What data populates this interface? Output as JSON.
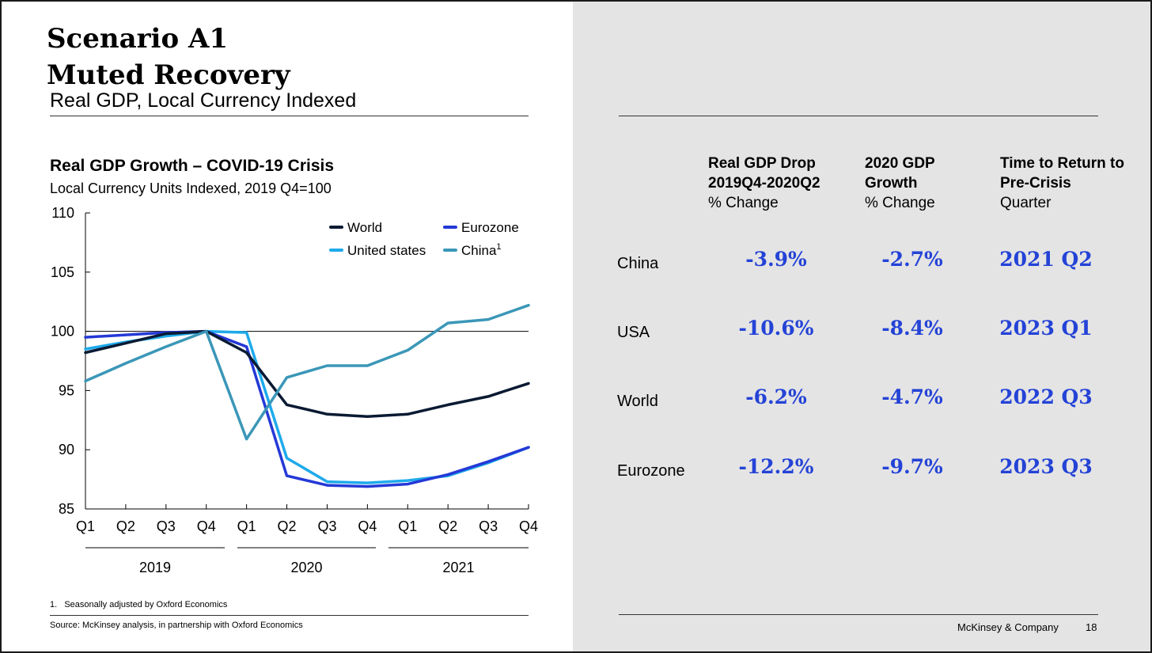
{
  "slide": {
    "title_line1": "Scenario A1",
    "title_line2": "Muted Recovery",
    "subtitle": "Real GDP, Local Currency Indexed",
    "footnote": "1.   Seasonally adjusted by Oxford Economics",
    "source": "Source: McKinsey analysis, in partnership with Oxford Economics",
    "footer_brand": "McKinsey & Company",
    "page_number": "18"
  },
  "chart_data": {
    "type": "line",
    "title": "Real GDP Growth – COVID-19 Crisis",
    "subtitle": "Local Currency Units Indexed, 2019 Q4=100",
    "ylim": [
      85,
      110
    ],
    "yticks": [
      "110",
      "105",
      "100",
      "95",
      "90",
      "85"
    ],
    "categories": [
      "Q1",
      "Q2",
      "Q3",
      "Q4",
      "Q1",
      "Q2",
      "Q3",
      "Q4",
      "Q1",
      "Q2",
      "Q3",
      "Q4"
    ],
    "year_groups": [
      "2019",
      "2020",
      "2021"
    ],
    "reference_line": 100,
    "series": [
      {
        "name": "World",
        "color": "#0b1a33",
        "values": [
          98.2,
          99.0,
          99.8,
          100.0,
          98.2,
          93.8,
          93.0,
          92.8,
          93.0,
          93.8,
          94.5,
          95.6
        ]
      },
      {
        "name": "Eurozone",
        "color": "#2439d6",
        "values": [
          99.5,
          99.7,
          99.9,
          100.0,
          98.7,
          87.8,
          87.0,
          86.9,
          87.1,
          87.9,
          89.0,
          90.2
        ]
      },
      {
        "name": "United states",
        "color": "#1eaaeb",
        "values": [
          98.5,
          99.1,
          99.6,
          100.0,
          99.9,
          89.3,
          87.3,
          87.2,
          87.4,
          87.8,
          88.9,
          90.2
        ]
      },
      {
        "name": "China",
        "color": "#3b97b8",
        "values": [
          95.8,
          97.3,
          98.7,
          100.0,
          90.9,
          96.1,
          97.1,
          97.1,
          98.4,
          100.7,
          101.0,
          102.2
        ]
      }
    ],
    "legend": {
      "world": "World",
      "eurozone": "Eurozone",
      "us": "United states",
      "china": "China",
      "china_sup": "1"
    }
  },
  "table": {
    "columns": [
      {
        "title_line1": "Real GDP Drop",
        "title_line2": "2019Q4-2020Q2",
        "unit": "% Change"
      },
      {
        "title_line1": "2020 GDP",
        "title_line2": "Growth",
        "unit": "% Change"
      },
      {
        "title_line1": "Time to Return to",
        "title_line2": "Pre-Crisis",
        "unit": "Quarter"
      }
    ],
    "rows": [
      {
        "label": "China",
        "drop": "-3.9%",
        "growth": "-2.7%",
        "return": "2021 Q2"
      },
      {
        "label": "USA",
        "drop": "-10.6%",
        "growth": "-8.4%",
        "return": "2023 Q1"
      },
      {
        "label": "World",
        "drop": "-6.2%",
        "growth": "-4.7%",
        "return": "2022 Q3"
      },
      {
        "label": "Eurozone",
        "drop": "-12.2%",
        "growth": "-9.7%",
        "return": "2023 Q3"
      }
    ],
    "value_color": "#2443d6"
  }
}
